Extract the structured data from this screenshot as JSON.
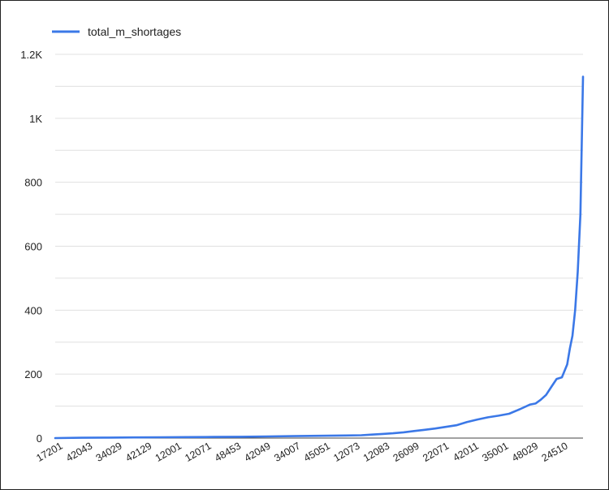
{
  "chart_data": {
    "type": "line",
    "title": "",
    "xlabel": "",
    "ylabel": "",
    "ylim": [
      0,
      1200
    ],
    "y_ticks": [
      {
        "value": 0,
        "label": "0"
      },
      {
        "value": 200,
        "label": "200"
      },
      {
        "value": 400,
        "label": "400"
      },
      {
        "value": 600,
        "label": "600"
      },
      {
        "value": 800,
        "label": "800"
      },
      {
        "value": 1000,
        "label": "1K"
      },
      {
        "value": 1200,
        "label": "1.2K"
      }
    ],
    "grid": true,
    "legend": "top-left",
    "x_tick_labels": [
      "17201",
      "42043",
      "34029",
      "42129",
      "12001",
      "12071",
      "48453",
      "42049",
      "34007",
      "45051",
      "12073",
      "12083",
      "26099",
      "22071",
      "42011",
      "35001",
      "48029",
      "24510"
    ],
    "series": [
      {
        "name": "total_m_shortages",
        "color": "#3b78e7",
        "x": [
          0,
          5,
          10,
          15,
          20,
          25,
          30,
          35,
          40,
          45,
          50,
          55,
          58,
          60,
          62,
          64,
          66,
          68,
          70,
          72,
          74,
          76,
          78,
          80,
          82,
          84,
          86,
          88,
          90,
          91,
          92,
          93,
          94,
          95,
          96,
          97,
          97.5,
          98,
          98.5,
          99,
          99.5,
          100
        ],
        "values": [
          0,
          1,
          1.5,
          2,
          2.5,
          3,
          3.5,
          4,
          5,
          6,
          7,
          8,
          9,
          11,
          13,
          15,
          18,
          22,
          26,
          30,
          35,
          40,
          50,
          58,
          65,
          70,
          76,
          90,
          105,
          108,
          120,
          135,
          160,
          185,
          190,
          230,
          280,
          320,
          400,
          520,
          700,
          1130
        ]
      }
    ]
  }
}
